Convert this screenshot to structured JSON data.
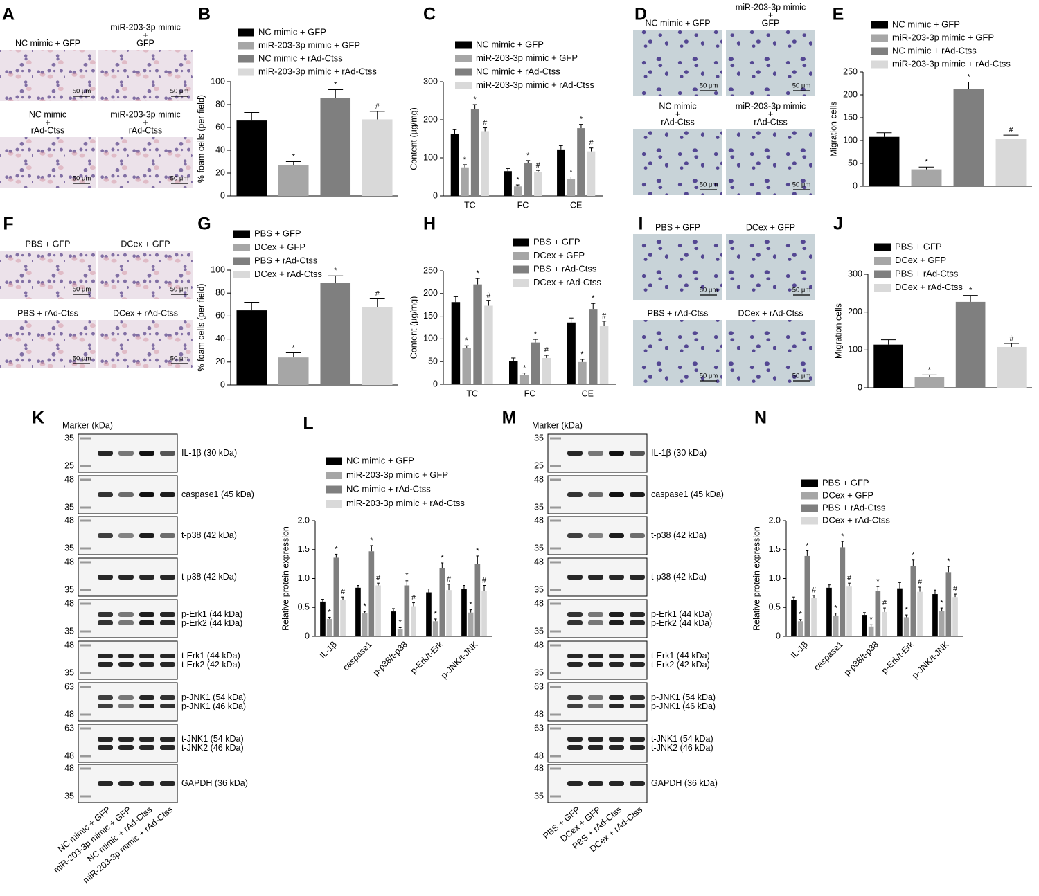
{
  "panel_letters": [
    "A",
    "B",
    "C",
    "D",
    "E",
    "F",
    "G",
    "H",
    "I",
    "J",
    "K",
    "L",
    "M",
    "N"
  ],
  "micrographs": [
    {
      "images": [
        {
          "label": [
            "NC mimic + GFP"
          ],
          "scale": "50 μm"
        },
        {
          "label": [
            "miR-203-3p mimic",
            "+",
            "GFP"
          ],
          "scale": "50 μm"
        },
        {
          "label": [
            "NC mimic",
            "+",
            "rAd-Ctss"
          ],
          "scale": "50 μm"
        },
        {
          "label": [
            "miR-203-3p mimic",
            "+",
            "rAd-Ctss"
          ],
          "scale": "50 μm"
        }
      ]
    },
    {
      "images": [
        {
          "label": [
            "NC mimic + GFP"
          ],
          "scale": "50 μm"
        },
        {
          "label": [
            "miR-203-3p mimic",
            "+",
            "GFP"
          ],
          "scale": "50 μm"
        },
        {
          "label": [
            "NC mimic",
            "+",
            "rAd-Ctss"
          ],
          "scale": "50 μm"
        },
        {
          "label": [
            "miR-203-3p mimic",
            "+",
            "rAd-Ctss"
          ],
          "scale": "50 μm"
        }
      ]
    },
    {
      "images": [
        {
          "label": [
            "PBS + GFP"
          ],
          "scale": "50 μm"
        },
        {
          "label": [
            "DCex + GFP"
          ],
          "scale": "50 μm"
        },
        {
          "label": [
            "PBS + rAd-Ctss"
          ],
          "scale": "50 μm"
        },
        {
          "label": [
            "DCex + rAd-Ctss"
          ],
          "scale": "50 μm"
        }
      ]
    },
    {
      "images": [
        {
          "label": [
            "PBS + GFP"
          ],
          "scale": "50 μm"
        },
        {
          "label": [
            "DCex + GFP"
          ],
          "scale": "50 μm"
        },
        {
          "label": [
            "PBS + rAd-Ctss"
          ],
          "scale": "50 μm"
        },
        {
          "label": [
            "DCex + rAd-Ctss"
          ],
          "scale": "50 μm"
        }
      ]
    }
  ],
  "blots": [
    {
      "marker_title": "Marker (kDa)",
      "lanes": [
        "NC mimic + GFP",
        "miR-203-3p mimic + GFP",
        "NC mimic + rAd-Ctss",
        "miR-203-3p mimic + rAd-Ctss"
      ],
      "rows": [
        {
          "markers": [
            35,
            25
          ],
          "labels": [
            "IL-1β (30 kDa)"
          ]
        },
        {
          "markers": [
            48,
            35
          ],
          "labels": [
            "caspase1 (45 kDa)"
          ]
        },
        {
          "markers": [
            48,
            35
          ],
          "labels": [
            "t-p38  (42 kDa)"
          ]
        },
        {
          "markers": [
            48,
            35
          ],
          "labels": [
            "t-p38  (42 kDa)"
          ]
        },
        {
          "markers": [
            48,
            35
          ],
          "labels": [
            "p-Erk1 (44 kDa)",
            "p-Erk2 (44 kDa)"
          ]
        },
        {
          "markers": [
            48,
            35
          ],
          "labels": [
            "t-Erk1 (44 kDa)",
            "t-Erk2 (42 kDa)"
          ]
        },
        {
          "markers": [
            63,
            48
          ],
          "labels": [
            "p-JNK1 (54 kDa)",
            "p-JNK1 (46 kDa)"
          ]
        },
        {
          "markers": [
            63,
            48
          ],
          "labels": [
            "t-JNK1 (54 kDa)",
            "t-JNK2 (46 kDa)"
          ]
        },
        {
          "markers": [
            48,
            35
          ],
          "labels": [
            "GAPDH (36 kDa)"
          ]
        }
      ]
    },
    {
      "marker_title": "Marker (kDa)",
      "lanes": [
        "PBS + GFP",
        "DCex + GFP",
        "PBS + rAd-Ctss",
        "DCex + rAd-Ctss"
      ],
      "rows": [
        {
          "markers": [
            35,
            25
          ],
          "labels": [
            "IL-1β (30 kDa)"
          ]
        },
        {
          "markers": [
            48,
            35
          ],
          "labels": [
            "caspase1 (45 kDa)"
          ]
        },
        {
          "markers": [
            48,
            35
          ],
          "labels": [
            "t-p38  (42 kDa)"
          ]
        },
        {
          "markers": [
            48,
            35
          ],
          "labels": [
            "t-p38  (42 kDa)"
          ]
        },
        {
          "markers": [
            48,
            35
          ],
          "labels": [
            "p-Erk1 (44 kDa)",
            "p-Erk2 (44 kDa)"
          ]
        },
        {
          "markers": [
            48,
            35
          ],
          "labels": [
            "t-Erk1 (44 kDa)",
            "t-Erk2 (42 kDa)"
          ]
        },
        {
          "markers": [
            63,
            48
          ],
          "labels": [
            "p-JNK1 (54 kDa)",
            "p-JNK1 (46 kDa)"
          ]
        },
        {
          "markers": [
            63,
            48
          ],
          "labels": [
            "t-JNK1 (54 kDa)",
            "t-JNK2 (46 kDa)"
          ]
        },
        {
          "markers": [
            48,
            35
          ],
          "labels": [
            "GAPDH (36 kDa)"
          ]
        }
      ]
    }
  ],
  "chart_data": [
    {
      "type": "bar",
      "ylabel": "% foam cells (per field)",
      "ylim": [
        0,
        100
      ],
      "yticks": [
        0,
        20,
        40,
        60,
        80,
        100
      ],
      "series": [
        {
          "name": "NC mimic + GFP",
          "color": "#000000",
          "values": [
            66
          ],
          "errors": [
            7
          ]
        },
        {
          "name": "miR-203-3p mimic + GFP",
          "color": "#a6a6a6",
          "values": [
            27
          ],
          "errors": [
            3
          ],
          "annotations": [
            "*"
          ]
        },
        {
          "name": "NC mimic + rAd-Ctss",
          "color": "#7f7f7f",
          "values": [
            86
          ],
          "errors": [
            7
          ],
          "annotations": [
            "*"
          ]
        },
        {
          "name": "miR-203-3p mimic + rAd-Ctss",
          "color": "#d9d9d9",
          "values": [
            67
          ],
          "errors": [
            7
          ],
          "annotations": [
            "#"
          ]
        }
      ]
    },
    {
      "type": "bar",
      "ylabel": "Content (μg/mg)",
      "ylim": [
        0,
        300
      ],
      "yticks": [
        0,
        100,
        200,
        300
      ],
      "categories": [
        "TC",
        "FC",
        "CE"
      ],
      "series": [
        {
          "name": "NC mimic + GFP",
          "color": "#000000",
          "values": [
            162,
            65,
            122
          ],
          "errors": [
            12,
            7,
            10
          ]
        },
        {
          "name": "miR-203-3p mimic + GFP",
          "color": "#a6a6a6",
          "values": [
            75,
            25,
            45
          ],
          "errors": [
            7,
            4,
            5
          ],
          "annotations": [
            "*",
            "*",
            "*"
          ]
        },
        {
          "name": "NC mimic + rAd-Ctss",
          "color": "#7f7f7f",
          "values": [
            228,
            87,
            178
          ],
          "errors": [
            12,
            6,
            10
          ],
          "annotations": [
            "*",
            "*",
            "*"
          ]
        },
        {
          "name": "miR-203-3p mimic + rAd-Ctss",
          "color": "#d9d9d9",
          "values": [
            170,
            62,
            117
          ],
          "errors": [
            9,
            5,
            9
          ],
          "annotations": [
            "#",
            "#",
            "#"
          ]
        }
      ]
    },
    {
      "type": "bar",
      "ylabel": "Migration cells",
      "ylim": [
        0,
        250
      ],
      "yticks": [
        0,
        50,
        100,
        150,
        200,
        250
      ],
      "series": [
        {
          "name": "NC mimic + GFP",
          "color": "#000000",
          "values": [
            108
          ],
          "errors": [
            9
          ]
        },
        {
          "name": "miR-203-3p mimic + GFP",
          "color": "#a6a6a6",
          "values": [
            37
          ],
          "errors": [
            5
          ],
          "annotations": [
            "*"
          ]
        },
        {
          "name": "NC mimic + rAd-Ctss",
          "color": "#7f7f7f",
          "values": [
            213
          ],
          "errors": [
            15
          ],
          "annotations": [
            "*"
          ]
        },
        {
          "name": "miR-203-3p mimic + rAd-Ctss",
          "color": "#d9d9d9",
          "values": [
            103
          ],
          "errors": [
            9
          ],
          "annotations": [
            "#"
          ]
        }
      ]
    },
    {
      "type": "bar",
      "ylabel": "% foam cells (per field)",
      "ylim": [
        0,
        100
      ],
      "yticks": [
        0,
        20,
        40,
        60,
        80,
        100
      ],
      "series": [
        {
          "name": "PBS + GFP",
          "color": "#000000",
          "values": [
            65
          ],
          "errors": [
            7
          ]
        },
        {
          "name": "DCex + GFP",
          "color": "#a6a6a6",
          "values": [
            24
          ],
          "errors": [
            4
          ],
          "annotations": [
            "*"
          ]
        },
        {
          "name": "PBS + rAd-Ctss",
          "color": "#7f7f7f",
          "values": [
            89
          ],
          "errors": [
            6
          ],
          "annotations": [
            "*"
          ]
        },
        {
          "name": "DCex + rAd-Ctss",
          "color": "#d9d9d9",
          "values": [
            68
          ],
          "errors": [
            7
          ],
          "annotations": [
            "#"
          ]
        }
      ]
    },
    {
      "type": "bar",
      "ylabel": "Content (μg/mg)",
      "ylim": [
        0,
        250
      ],
      "yticks": [
        0,
        50,
        100,
        150,
        200,
        250
      ],
      "categories": [
        "TC",
        "FC",
        "CE"
      ],
      "series": [
        {
          "name": "PBS + GFP",
          "color": "#000000",
          "values": [
            181,
            51,
            136
          ],
          "errors": [
            12,
            7,
            10
          ]
        },
        {
          "name": "DCex + GFP",
          "color": "#a6a6a6",
          "values": [
            80,
            21,
            49
          ],
          "errors": [
            5,
            4,
            6
          ],
          "annotations": [
            "*",
            "*",
            "*"
          ]
        },
        {
          "name": "PBS + rAd-Ctss",
          "color": "#7f7f7f",
          "values": [
            220,
            92,
            166
          ],
          "errors": [
            13,
            7,
            12
          ],
          "annotations": [
            "*",
            "*",
            "*"
          ]
        },
        {
          "name": "DCex + rAd-Ctss",
          "color": "#d9d9d9",
          "values": [
            173,
            58,
            128
          ],
          "errors": [
            12,
            6,
            11
          ],
          "annotations": [
            "#",
            "#",
            "#"
          ]
        }
      ]
    },
    {
      "type": "bar",
      "ylabel": "Migration cells",
      "ylim": [
        0,
        300
      ],
      "yticks": [
        0,
        100,
        200,
        300
      ],
      "series": [
        {
          "name": "PBS + GFP",
          "color": "#000000",
          "values": [
            114
          ],
          "errors": [
            13
          ]
        },
        {
          "name": "DCex + GFP",
          "color": "#a6a6a6",
          "values": [
            29
          ],
          "errors": [
            5
          ],
          "annotations": [
            "*"
          ]
        },
        {
          "name": "PBS + rAd-Ctss",
          "color": "#7f7f7f",
          "values": [
            227
          ],
          "errors": [
            17
          ],
          "annotations": [
            "*"
          ]
        },
        {
          "name": "DCex + rAd-Ctss",
          "color": "#d9d9d9",
          "values": [
            108
          ],
          "errors": [
            9
          ],
          "annotations": [
            "#"
          ]
        }
      ]
    },
    {
      "type": "bar",
      "ylabel": "Relative protein expression",
      "ylim": [
        0,
        2
      ],
      "yticks": [
        0,
        0.5,
        {
          "value": 1,
          "label": "1.0"
        },
        1.5,
        {
          "value": 2,
          "label": "2.0"
        }
      ],
      "categories": [
        "IL-1β",
        "caspase1",
        "p-p38/t-p38",
        "p-Erk/t-Erk",
        "p-JNK/t-JNK"
      ],
      "xtick_rotation": -45,
      "series": [
        {
          "name": "NC mimic + GFP",
          "color": "#000000",
          "values": [
            0.6,
            0.84,
            0.43,
            0.76,
            0.82
          ],
          "errors": [
            0.04,
            0.04,
            0.05,
            0.06,
            0.06
          ]
        },
        {
          "name": "miR-203-3p mimic + GFP",
          "color": "#a6a6a6",
          "values": [
            0.3,
            0.4,
            0.12,
            0.26,
            0.41
          ],
          "errors": [
            0.03,
            0.03,
            0.03,
            0.04,
            0.05
          ],
          "annotations": [
            "*",
            "*",
            "*",
            "*",
            "*"
          ]
        },
        {
          "name": "NC mimic + rAd-Ctss",
          "color": "#7f7f7f",
          "values": [
            1.36,
            1.47,
            0.88,
            1.18,
            1.25
          ],
          "errors": [
            0.06,
            0.1,
            0.08,
            0.09,
            0.14
          ],
          "annotations": [
            "*",
            "*",
            "*",
            "*",
            "*"
          ]
        },
        {
          "name": "miR-203-3p mimic + rAd-Ctss",
          "color": "#d9d9d9",
          "values": [
            0.63,
            0.88,
            0.52,
            0.8,
            0.78
          ],
          "errors": [
            0.05,
            0.04,
            0.06,
            0.1,
            0.1
          ],
          "annotations": [
            "#",
            "#",
            "#",
            "#",
            "#"
          ]
        }
      ]
    },
    {
      "type": "bar",
      "ylabel": "Relative protein expression",
      "ylim": [
        0,
        2
      ],
      "yticks": [
        0,
        0.5,
        {
          "value": 1,
          "label": "1.0"
        },
        1.5,
        {
          "value": 2,
          "label": "2.0"
        }
      ],
      "categories": [
        "IL-1β",
        "caspase1",
        "p-p38/t-p38",
        "p-Erk/t-Erk",
        "p-JNK/t-JNK"
      ],
      "xtick_rotation": -45,
      "series": [
        {
          "name": "PBS + GFP",
          "color": "#000000",
          "values": [
            0.63,
            0.84,
            0.37,
            0.83,
            0.73
          ],
          "errors": [
            0.05,
            0.05,
            0.04,
            0.1,
            0.07
          ]
        },
        {
          "name": "DCex + GFP",
          "color": "#a6a6a6",
          "values": [
            0.26,
            0.36,
            0.17,
            0.33,
            0.44
          ],
          "errors": [
            0.03,
            0.04,
            0.03,
            0.04,
            0.05
          ],
          "annotations": [
            "*",
            "*",
            "*",
            "*",
            "*"
          ]
        },
        {
          "name": "PBS + rAd-Ctss",
          "color": "#7f7f7f",
          "values": [
            1.39,
            1.54,
            0.79,
            1.22,
            1.11
          ],
          "errors": [
            0.09,
            0.1,
            0.07,
            0.1,
            0.1
          ],
          "annotations": [
            "*",
            "*",
            "*",
            "*",
            "*"
          ]
        },
        {
          "name": "DCex + rAd-Ctss",
          "color": "#d9d9d9",
          "values": [
            0.66,
            0.86,
            0.42,
            0.77,
            0.68
          ],
          "errors": [
            0.05,
            0.06,
            0.07,
            0.08,
            0.05
          ],
          "annotations": [
            "#",
            "#",
            "#",
            "#",
            "#"
          ]
        }
      ]
    }
  ]
}
